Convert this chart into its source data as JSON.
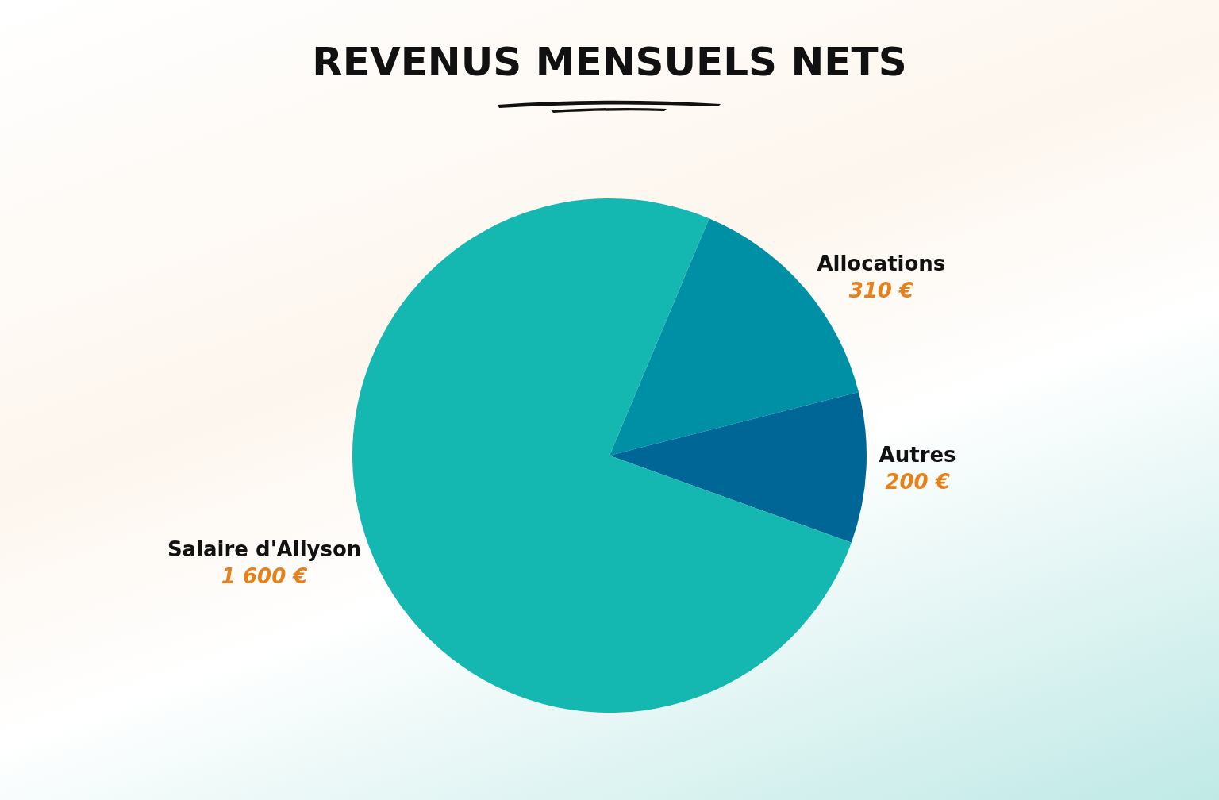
{
  "chart_data": {
    "type": "pie",
    "title": "REVENUS MENSUELS NETS",
    "categories": [
      "Allocations",
      "Autres",
      "Salaire d'Allyson"
    ],
    "values": [
      310,
      200,
      1600
    ],
    "value_labels": [
      "310 €",
      "200 €",
      "1 600 €"
    ],
    "colors": [
      "#0090a6",
      "#006696",
      "#14b8b0"
    ]
  }
}
